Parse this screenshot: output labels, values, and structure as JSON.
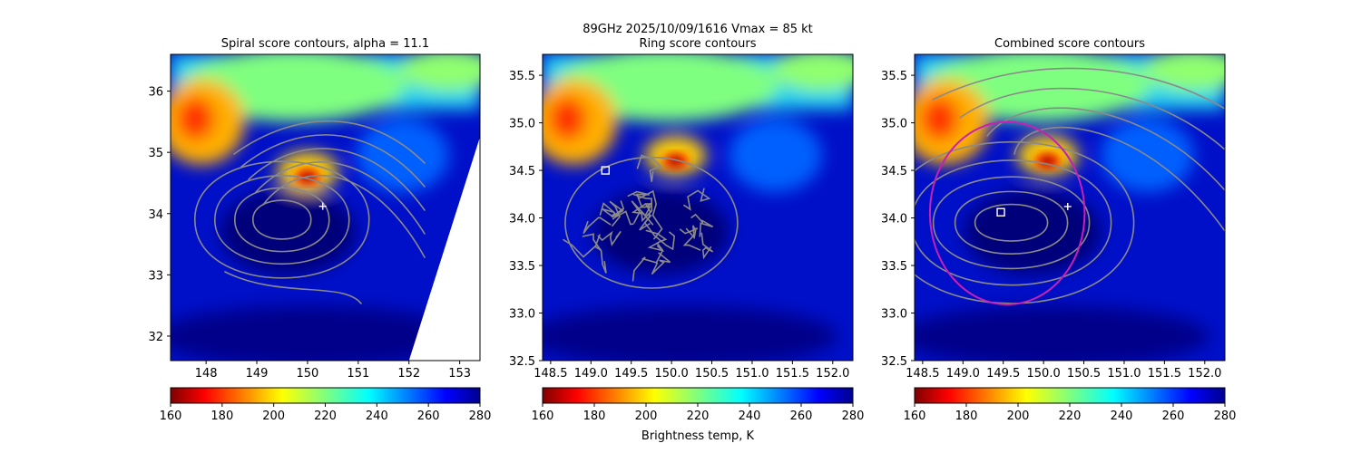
{
  "figure": {
    "suptitle_line1": "89GHz  2025/10/09/1616    Vmax = 85 kt",
    "colorbar_label": "Brightness temp, K"
  },
  "colors": {
    "contour": "#8a8a8a",
    "circle": "#c81fb4",
    "marker": "#ffffff",
    "colormap": "jet"
  },
  "chart_data": [
    {
      "type": "heatmap",
      "title": "Spiral score contours, alpha = 11.1",
      "xlim": [
        147.3,
        153.4
      ],
      "ylim": [
        31.6,
        36.6
      ],
      "xticks": [
        148,
        149,
        150,
        151,
        152,
        153
      ],
      "yticks": [
        32,
        33,
        34,
        35,
        36
      ],
      "xtick_labels": [
        "148",
        "149",
        "150",
        "151",
        "152",
        "153"
      ],
      "ytick_labels": [
        "32",
        "33",
        "34",
        "35",
        "36"
      ],
      "colorbar": {
        "vmin": 160,
        "vmax": 280,
        "ticks": [
          "160",
          "180",
          "200",
          "220",
          "240",
          "260",
          "280"
        ],
        "cmap": "jet_r"
      },
      "markers": [
        {
          "symbol": "plus",
          "x": 150.3,
          "y": 34.12
        }
      ],
      "swath_edge": [
        [
          153.4,
          35.25
        ],
        [
          152.0,
          31.6
        ]
      ],
      "contours": "spiral",
      "hotspot": {
        "x": 150.0,
        "y": 34.6
      }
    },
    {
      "type": "heatmap",
      "title": "Ring score contours",
      "xlim": [
        148.4,
        152.25
      ],
      "ylim": [
        32.5,
        35.72
      ],
      "xticks": [
        148.5,
        149.0,
        149.5,
        150.0,
        150.5,
        151.0,
        151.5,
        152.0
      ],
      "yticks": [
        32.5,
        33.0,
        33.5,
        34.0,
        34.5,
        35.0,
        35.5
      ],
      "xtick_labels": [
        "148.5",
        "149.0",
        "149.5",
        "150.0",
        "150.5",
        "151.0",
        "151.5",
        "152.0"
      ],
      "ytick_labels": [
        "32.5",
        "33.0",
        "33.5",
        "34.0",
        "34.5",
        "35.0",
        "35.5"
      ],
      "colorbar": {
        "vmin": 160,
        "vmax": 280,
        "ticks": [
          "160",
          "180",
          "200",
          "220",
          "240",
          "260",
          "280"
        ],
        "cmap": "jet_r"
      },
      "markers": [
        {
          "symbol": "square",
          "x": 149.18,
          "y": 34.5
        }
      ],
      "contours": "ring",
      "hotspot": {
        "x": 150.05,
        "y": 34.6
      }
    },
    {
      "type": "heatmap",
      "title": "Combined score contours",
      "xlim": [
        148.4,
        152.25
      ],
      "ylim": [
        32.5,
        35.72
      ],
      "xticks": [
        148.5,
        149.0,
        149.5,
        150.0,
        150.5,
        151.0,
        151.5,
        152.0
      ],
      "yticks": [
        32.5,
        33.0,
        33.5,
        34.0,
        34.5,
        35.0,
        35.5
      ],
      "xtick_labels": [
        "148.5",
        "149.0",
        "149.5",
        "150.0",
        "150.5",
        "151.0",
        "151.5",
        "152.0"
      ],
      "ytick_labels": [
        "32.5",
        "33.0",
        "33.5",
        "34.0",
        "34.5",
        "35.0",
        "35.5"
      ],
      "colorbar": {
        "vmin": 160,
        "vmax": 280,
        "ticks": [
          "160",
          "180",
          "200",
          "220",
          "240",
          "260",
          "280"
        ],
        "cmap": "jet_r"
      },
      "markers": [
        {
          "symbol": "square",
          "x": 149.47,
          "y": 34.06
        },
        {
          "symbol": "plus",
          "x": 150.3,
          "y": 34.12
        }
      ],
      "circle": {
        "cx": 149.55,
        "cy": 34.05,
        "r_deg": 0.96
      },
      "contours": "combined",
      "hotspot": {
        "x": 150.05,
        "y": 34.6
      }
    }
  ]
}
